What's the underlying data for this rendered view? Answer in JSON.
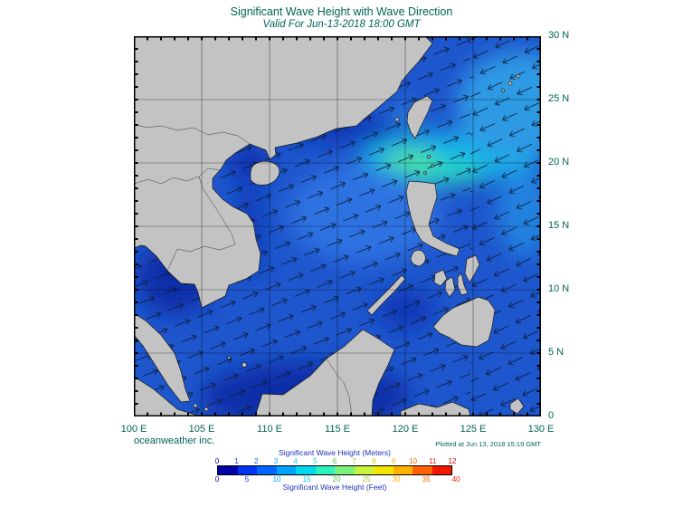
{
  "title": "Significant Wave Height with Wave Direction",
  "subtitle": "Valid For Jun-13-2018 18:00 GMT",
  "credits": {
    "publisher": "oceanweather inc.",
    "plotted": "Plotted at Jun 13, 2018 15:19 GMT"
  },
  "axes": {
    "longitude_labels": [
      "100 E",
      "105 E",
      "110 E",
      "115 E",
      "120 E",
      "125 E",
      "130 E"
    ],
    "latitude_labels": [
      "30 N",
      "25 N",
      "20 N",
      "15 N",
      "10 N",
      "5 N",
      "0"
    ]
  },
  "legend": {
    "meters_title": "Significant Wave Height (Meters)",
    "feet_title": "Significant Wave Height (Feet)",
    "meters_ticks": [
      "0",
      "1",
      "2",
      "3",
      "4",
      "5",
      "6",
      "7",
      "8",
      "9",
      "10",
      "11",
      "12"
    ],
    "feet_ticks": [
      "0",
      "5",
      "10",
      "15",
      "20",
      "25",
      "30",
      "35",
      "40"
    ],
    "colors": [
      "#0000a8",
      "#0033f2",
      "#0066ff",
      "#00a4ff",
      "#00d8f0",
      "#2df2c0",
      "#7cf27c",
      "#c8f23c",
      "#f2e600",
      "#ffb000",
      "#ff6000",
      "#f21800"
    ],
    "meters_tick_colors": [
      "#0000a8",
      "#0033f2",
      "#0066ff",
      "#00a4ff",
      "#00d8f0",
      "#2dd4aa",
      "#55c455",
      "#a8cc30",
      "#d8c400",
      "#ffb000",
      "#ff6000",
      "#f21800",
      "#cc0000"
    ],
    "feet_tick_colors": [
      "#0000a8",
      "#0033f2",
      "#00a4ff",
      "#00c8e0",
      "#55c455",
      "#a8cc30",
      "#ffb000",
      "#ff6000",
      "#f21800"
    ]
  },
  "colors": {
    "heading_text": "#00635a",
    "axis_text": "#00635a",
    "legend_text": "#2233bb",
    "land": "#c3c3c3",
    "ocean": "#1e56cd"
  }
}
